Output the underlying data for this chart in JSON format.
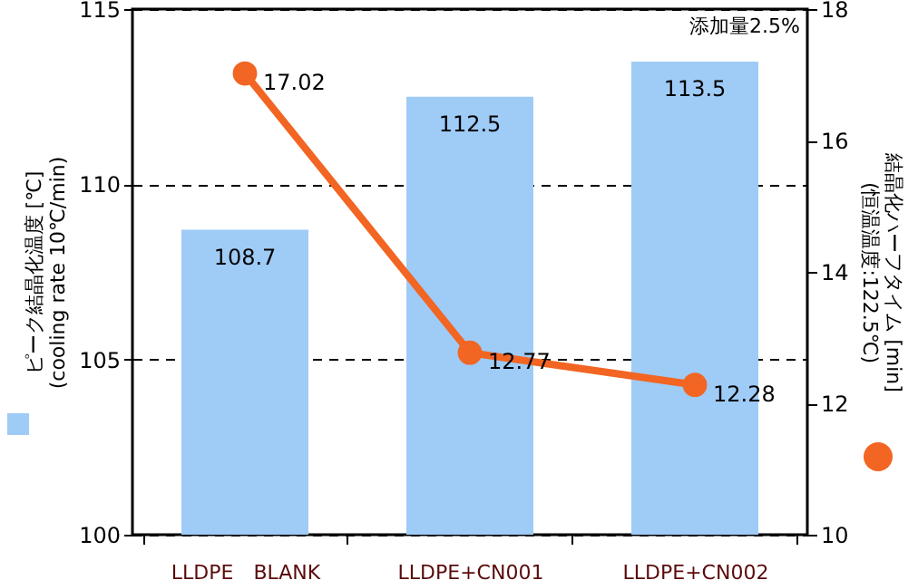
{
  "chart_data": {
    "type": "bar",
    "categories": [
      "LLDPE　BLANK",
      "LLDPE+CN001",
      "LLDPE+CN002"
    ],
    "series": [
      {
        "color": "#9fcbf7",
        "values": [
          108.7,
          112.5,
          113.5
        ]
      },
      {
        "type": "line",
        "axis": "y2",
        "color": "#f26522",
        "values": [
          17.02,
          12.77,
          12.28
        ]
      }
    ],
    "ylabel": "ピーク結晶化温度 [℃]\n(cooling rate 10℃/min)",
    "y2label": "結晶化ハーフタイム [min]\n(恒温温度:122.5℃)",
    "ylim": [
      100,
      115
    ],
    "yticks": [
      100,
      105,
      110,
      115
    ],
    "y2lim": [
      10,
      18
    ],
    "y2ticks": [
      10,
      12,
      14,
      16,
      18
    ],
    "annotations": [
      "添加量2.5%"
    ],
    "data_labels": true,
    "grid": "y",
    "marker": "circle"
  }
}
